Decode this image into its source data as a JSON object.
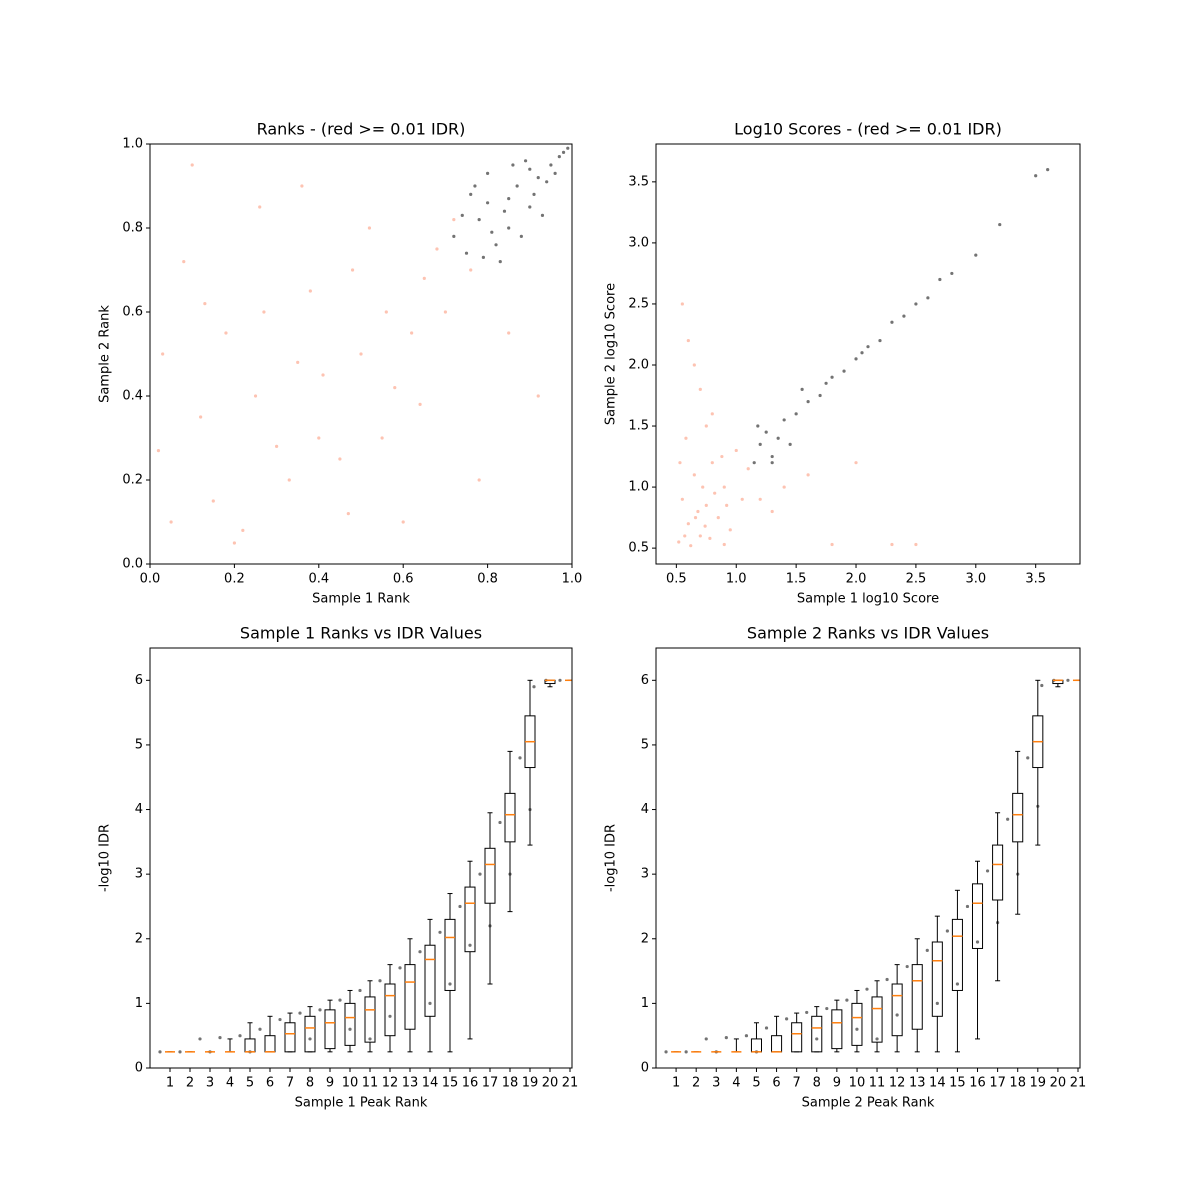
{
  "chart_data": [
    {
      "type": "scatter",
      "title": "Ranks - (red >= 0.01 IDR)",
      "x_label": "Sample 1 Rank",
      "y_label": "Sample 2 Rank",
      "xlim": [
        0,
        1
      ],
      "ylim": [
        0,
        1
      ],
      "xticks": [
        {
          "value": 0,
          "label": "0.0"
        },
        0.2,
        0.4,
        0.6,
        0.8,
        {
          "value": 1,
          "label": "1.0"
        }
      ],
      "yticks": [
        {
          "value": 0,
          "label": "0.0"
        },
        0.2,
        0.4,
        0.6,
        0.8,
        {
          "value": 1,
          "label": "1.0"
        }
      ],
      "series": [
        {
          "color": "#fc9272",
          "x": [
            0.05,
            0.12,
            0.2,
            0.27,
            0.33,
            0.41,
            0.48,
            0.55,
            0.62,
            0.68,
            0.03,
            0.15,
            0.25,
            0.38,
            0.45,
            0.52,
            0.6,
            0.7,
            0.08,
            0.18,
            0.3,
            0.36,
            0.5,
            0.58,
            0.65,
            0.72,
            0.1,
            0.22,
            0.4,
            0.56,
            0.02,
            0.35,
            0.64,
            0.76,
            0.85,
            0.92,
            0.47,
            0.26,
            0.13,
            0.78
          ],
          "values": [
            0.1,
            0.35,
            0.05,
            0.6,
            0.2,
            0.45,
            0.7,
            0.3,
            0.55,
            0.75,
            0.5,
            0.15,
            0.4,
            0.65,
            0.25,
            0.8,
            0.1,
            0.6,
            0.72,
            0.55,
            0.28,
            0.9,
            0.5,
            0.42,
            0.68,
            0.82,
            0.95,
            0.08,
            0.3,
            0.6,
            0.27,
            0.48,
            0.38,
            0.7,
            0.55,
            0.4,
            0.12,
            0.85,
            0.62,
            0.2
          ]
        },
        {
          "color": "#000000",
          "x": [
            0.72,
            0.75,
            0.78,
            0.8,
            0.82,
            0.85,
            0.87,
            0.9,
            0.92,
            0.95,
            0.97,
            0.99,
            0.76,
            0.8,
            0.84,
            0.88,
            0.91,
            0.94,
            0.79,
            0.83,
            0.86,
            0.89,
            0.93,
            0.96,
            0.98,
            0.74,
            0.81,
            0.77,
            0.85,
            0.9
          ],
          "values": [
            0.78,
            0.74,
            0.82,
            0.86,
            0.76,
            0.8,
            0.9,
            0.85,
            0.92,
            0.95,
            0.97,
            0.99,
            0.88,
            0.93,
            0.84,
            0.78,
            0.88,
            0.91,
            0.73,
            0.72,
            0.95,
            0.96,
            0.83,
            0.93,
            0.98,
            0.83,
            0.79,
            0.9,
            0.87,
            0.94
          ]
        }
      ]
    },
    {
      "type": "scatter",
      "title": "Log10 Scores - (red >= 0.01 IDR)",
      "x_label": "Sample 1 log10 Score",
      "y_label": "Sample 2 log10 Score",
      "xlim": [
        0.33,
        3.87
      ],
      "ylim": [
        0.37,
        3.81
      ],
      "xticks": [
        0.5,
        {
          "value": 1,
          "label": "1.0"
        },
        1.5,
        {
          "value": 2,
          "label": "2.0"
        },
        2.5,
        {
          "value": 3,
          "label": "3.0"
        },
        3.5
      ],
      "yticks": [
        0.5,
        {
          "value": 1,
          "label": "1.0"
        },
        1.5,
        {
          "value": 2,
          "label": "2.0"
        },
        2.5,
        {
          "value": 3,
          "label": "3.0"
        },
        3.5
      ],
      "series": [
        {
          "color": "#fc9272",
          "x": [
            0.52,
            0.55,
            0.6,
            0.65,
            0.7,
            0.75,
            0.8,
            0.85,
            0.9,
            0.95,
            1.0,
            1.05,
            1.1,
            0.58,
            0.62,
            0.68,
            0.72,
            0.78,
            0.82,
            0.88,
            0.53,
            0.57,
            0.66,
            0.74,
            0.92,
            1.2,
            1.4,
            1.6,
            1.8,
            2.0,
            2.3,
            2.5,
            0.6,
            0.7,
            0.55,
            0.8,
            0.65,
            1.3,
            0.9,
            0.75
          ],
          "values": [
            0.55,
            0.9,
            0.7,
            1.1,
            0.6,
            0.85,
            1.2,
            0.75,
            1.0,
            0.65,
            1.3,
            0.9,
            1.15,
            1.4,
            0.52,
            0.8,
            1.0,
            0.58,
            0.95,
            1.25,
            1.2,
            0.6,
            0.75,
            0.68,
            0.85,
            0.9,
            1.0,
            1.1,
            0.53,
            1.2,
            0.53,
            0.53,
            2.2,
            1.8,
            2.5,
            1.6,
            2.0,
            0.8,
            0.53,
            1.5
          ]
        },
        {
          "color": "#000000",
          "x": [
            1.15,
            1.2,
            1.25,
            1.3,
            1.35,
            1.4,
            1.5,
            1.6,
            1.7,
            1.8,
            1.9,
            2.0,
            2.1,
            2.2,
            2.3,
            2.4,
            2.5,
            2.6,
            2.7,
            2.8,
            3.0,
            3.2,
            3.5,
            3.6,
            1.18,
            1.3,
            1.45,
            1.55,
            1.75,
            2.05
          ],
          "values": [
            1.2,
            1.35,
            1.45,
            1.25,
            1.4,
            1.55,
            1.6,
            1.7,
            1.75,
            1.9,
            1.95,
            2.05,
            2.15,
            2.2,
            2.35,
            2.4,
            2.5,
            2.55,
            2.7,
            2.75,
            2.9,
            3.15,
            3.55,
            3.6,
            1.5,
            1.2,
            1.35,
            1.8,
            1.85,
            2.1
          ]
        }
      ]
    },
    {
      "type": "box",
      "title": "Sample 1 Ranks vs IDR Values",
      "x_label": "Sample 1 Peak Rank",
      "y_label": "-log10 IDR",
      "xlim": [
        0,
        21.1
      ],
      "ylim": [
        0,
        6.5
      ],
      "xticks": [
        1,
        2,
        3,
        4,
        5,
        6,
        7,
        8,
        9,
        10,
        11,
        12,
        13,
        14,
        15,
        16,
        17,
        18,
        19,
        20,
        21
      ],
      "yticks": [
        0,
        1,
        2,
        3,
        4,
        5,
        6
      ],
      "series": [
        {
          "color": "#000000",
          "x": [
            0.5,
            1.5,
            2.5,
            3.5,
            4.5,
            5.5,
            6.5,
            7.5,
            8.5,
            9.5,
            10.5,
            11.5,
            12.5,
            13.5,
            14.5,
            15.5,
            16.5,
            17.5,
            18.5,
            19.2,
            19.8,
            20.5,
            5,
            8,
            11,
            14,
            17,
            19,
            3,
            12,
            15,
            18,
            10,
            16
          ],
          "values": [
            0.25,
            0.25,
            0.45,
            0.47,
            0.5,
            0.6,
            0.75,
            0.85,
            0.9,
            1.05,
            1.2,
            1.35,
            1.55,
            1.8,
            2.1,
            2.5,
            3.0,
            3.8,
            4.8,
            5.9,
            6.0,
            6.0,
            0.25,
            0.45,
            0.45,
            1.0,
            2.2,
            4.0,
            0.25,
            0.8,
            1.3,
            3.0,
            0.6,
            1.9
          ]
        }
      ],
      "median_color": "#ff7f0e",
      "boxes": {
        "median": [
          0.25,
          0.25,
          0.25,
          0.25,
          0.25,
          0.25,
          0.53,
          0.62,
          0.7,
          0.78,
          0.9,
          1.12,
          1.33,
          1.68,
          2.02,
          2.55,
          3.15,
          3.92,
          5.05,
          6.0,
          6.0
        ],
        "q1": [
          0.25,
          0.25,
          0.25,
          0.25,
          0.25,
          0.25,
          0.25,
          0.25,
          0.3,
          0.35,
          0.4,
          0.5,
          0.6,
          0.8,
          1.2,
          1.8,
          2.55,
          3.5,
          4.65,
          5.95,
          6.0
        ],
        "q3": [
          0.25,
          0.25,
          0.25,
          0.25,
          0.45,
          0.5,
          0.7,
          0.8,
          0.9,
          1.0,
          1.1,
          1.3,
          1.6,
          1.9,
          2.3,
          2.8,
          3.4,
          4.25,
          5.45,
          6.0,
          6.0
        ],
        "whisker_low": [
          0.25,
          0.25,
          0.25,
          0.25,
          0.25,
          0.25,
          0.25,
          0.25,
          0.25,
          0.25,
          0.25,
          0.25,
          0.25,
          0.25,
          0.25,
          0.45,
          1.3,
          2.42,
          3.45,
          5.9,
          6.0
        ],
        "whisker_high": [
          0.25,
          0.25,
          0.25,
          0.45,
          0.7,
          0.8,
          0.85,
          0.95,
          1.05,
          1.2,
          1.35,
          1.6,
          2.0,
          2.3,
          2.7,
          3.2,
          3.95,
          4.9,
          6.0,
          6.0,
          6.0
        ]
      }
    },
    {
      "type": "box",
      "title": "Sample 2 Ranks vs IDR Values",
      "x_label": "Sample 2 Peak Rank",
      "y_label": "-log10 IDR",
      "xlim": [
        0,
        21.1
      ],
      "ylim": [
        0,
        6.5
      ],
      "xticks": [
        1,
        2,
        3,
        4,
        5,
        6,
        7,
        8,
        9,
        10,
        11,
        12,
        13,
        14,
        15,
        16,
        17,
        18,
        19,
        20,
        21
      ],
      "yticks": [
        0,
        1,
        2,
        3,
        4,
        5,
        6
      ],
      "series": [
        {
          "color": "#000000",
          "x": [
            0.5,
            1.5,
            2.5,
            3.5,
            4.5,
            5.5,
            6.5,
            7.5,
            8.5,
            9.5,
            10.5,
            11.5,
            12.5,
            13.5,
            14.5,
            15.5,
            16.5,
            17.5,
            18.5,
            19.2,
            19.8,
            20.5,
            5,
            8,
            11,
            14,
            17,
            19,
            3,
            12,
            15,
            18,
            10,
            16
          ],
          "values": [
            0.25,
            0.25,
            0.45,
            0.47,
            0.5,
            0.62,
            0.76,
            0.86,
            0.92,
            1.05,
            1.22,
            1.37,
            1.57,
            1.82,
            2.12,
            2.5,
            3.05,
            3.85,
            4.8,
            5.92,
            6.0,
            6.0,
            0.25,
            0.45,
            0.45,
            1.0,
            2.25,
            4.05,
            0.25,
            0.82,
            1.3,
            3.0,
            0.6,
            1.95
          ]
        }
      ],
      "median_color": "#ff7f0e",
      "boxes": {
        "median": [
          0.25,
          0.25,
          0.25,
          0.25,
          0.25,
          0.25,
          0.53,
          0.62,
          0.7,
          0.78,
          0.92,
          1.12,
          1.35,
          1.66,
          2.04,
          2.55,
          3.15,
          3.92,
          5.05,
          6.0,
          6.0
        ],
        "q1": [
          0.25,
          0.25,
          0.25,
          0.25,
          0.25,
          0.25,
          0.25,
          0.25,
          0.3,
          0.35,
          0.4,
          0.5,
          0.6,
          0.8,
          1.2,
          1.85,
          2.6,
          3.5,
          4.65,
          5.95,
          6.0
        ],
        "q3": [
          0.25,
          0.25,
          0.25,
          0.25,
          0.45,
          0.5,
          0.7,
          0.8,
          0.9,
          1.0,
          1.1,
          1.3,
          1.6,
          1.95,
          2.3,
          2.85,
          3.45,
          4.25,
          5.45,
          6.0,
          6.0
        ],
        "whisker_low": [
          0.25,
          0.25,
          0.25,
          0.25,
          0.25,
          0.25,
          0.25,
          0.25,
          0.25,
          0.25,
          0.25,
          0.25,
          0.25,
          0.25,
          0.25,
          0.45,
          1.35,
          2.38,
          3.45,
          5.9,
          6.0
        ],
        "whisker_high": [
          0.25,
          0.25,
          0.25,
          0.45,
          0.7,
          0.8,
          0.85,
          0.95,
          1.05,
          1.2,
          1.35,
          1.6,
          2.0,
          2.35,
          2.75,
          3.2,
          3.95,
          4.9,
          6.0,
          6.0,
          6.0
        ]
      }
    }
  ]
}
